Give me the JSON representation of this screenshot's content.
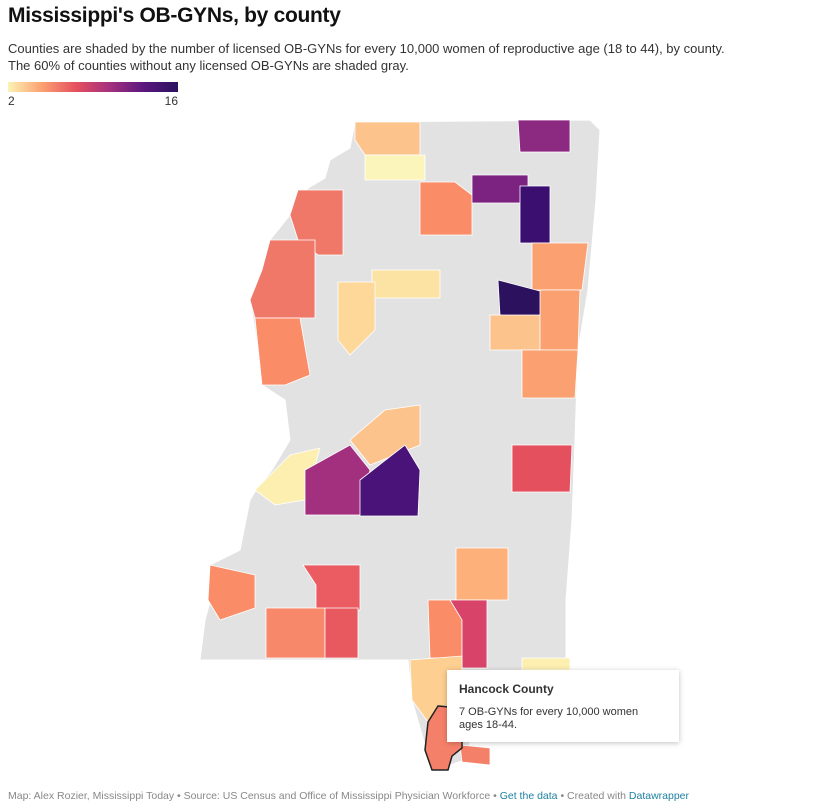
{
  "header": {
    "title": "Mississippi's OB-GYNs, by county",
    "description_line1": "Counties are shaded by the number of licensed OB-GYNs for every 10,000 women of reproductive age (18 to 44), by county.",
    "description_line2": "The 60% of counties without any licensed OB-GYNs are shaded gray."
  },
  "legend": {
    "min": "2",
    "max": "16",
    "colors": [
      "#fcf3b4",
      "#fba071",
      "#e5505e",
      "#a3307e",
      "#5a177e",
      "#2c115f"
    ],
    "no_data_color": "#e2e2e2"
  },
  "map": {
    "shaded_counties": [
      {
        "value": 4,
        "color": "#fdc38d"
      },
      {
        "value": 2,
        "color": "#fcf5bb"
      },
      {
        "value": 13,
        "color": "#8c2981"
      },
      {
        "value": 6,
        "color": "#fa8c68"
      },
      {
        "value": 13,
        "color": "#7c2382"
      },
      {
        "value": 16,
        "color": "#3b0f70"
      },
      {
        "value": 5,
        "color": "#fba071"
      },
      {
        "value": 7,
        "color": "#f07868"
      },
      {
        "value": 7,
        "color": "#f07868"
      },
      {
        "value": 6,
        "color": "#fa8c68"
      },
      {
        "value": 3,
        "color": "#fde3a3"
      },
      {
        "value": 3,
        "color": "#fdd898"
      },
      {
        "value": 16,
        "color": "#2c115f"
      },
      {
        "value": 4,
        "color": "#fdc38d"
      },
      {
        "value": 5,
        "color": "#fba071"
      },
      {
        "value": 5,
        "color": "#fba071"
      },
      {
        "value": 4,
        "color": "#fdc38d"
      },
      {
        "value": 2,
        "color": "#fcefb0"
      },
      {
        "value": 12,
        "color": "#a3307e"
      },
      {
        "value": 15,
        "color": "#4a1379"
      },
      {
        "value": 9,
        "color": "#e5505e"
      },
      {
        "value": 5,
        "color": "#fdb07a"
      },
      {
        "value": 6,
        "color": "#fa8c68"
      },
      {
        "value": 8,
        "color": "#ea5b62"
      },
      {
        "value": 6,
        "color": "#f8886a"
      },
      {
        "value": 8,
        "color": "#e8585f"
      },
      {
        "value": 6,
        "color": "#fa8c68"
      },
      {
        "value": 10,
        "color": "#d8436a"
      },
      {
        "value": 4,
        "color": "#fdcf90"
      },
      {
        "value": 2,
        "color": "#fcefb0"
      },
      {
        "value": 7,
        "color": "#f5806a"
      }
    ],
    "tooltip": {
      "county": "Hancock County",
      "text": "7 OB-GYNs for every 10,000 women ages 18-44."
    }
  },
  "footer": {
    "credit": "Map: Alex Rozier, Mississippi Today • Source: US Census and Office of Mississippi Physician Workforce •",
    "get_data": "Get the data",
    "created_with": "• Created with",
    "datawrapper": "Datawrapper"
  }
}
